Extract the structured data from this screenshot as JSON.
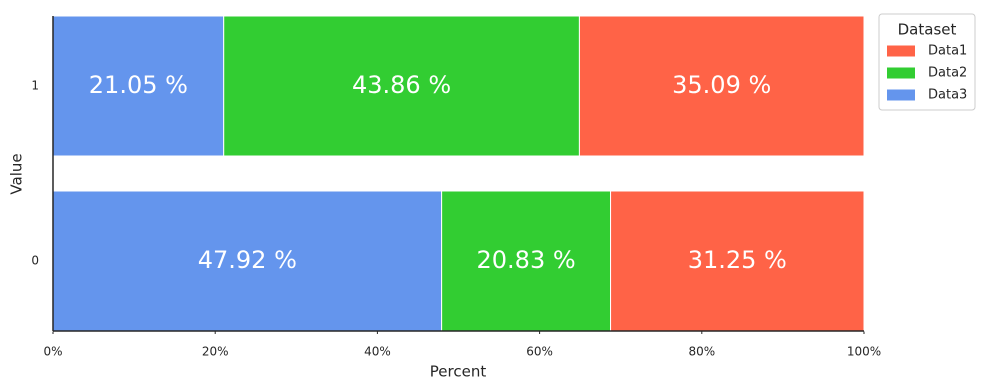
{
  "chart_data": {
    "type": "stacked_barh",
    "x_label": "Percent",
    "y_label": "Value",
    "legend_title": "Dataset",
    "categories": [
      "0",
      "1"
    ],
    "series": [
      {
        "name": "Data1",
        "color": "#ff6347",
        "values": [
          31.25,
          35.09
        ],
        "value_labels": [
          "31.25 %",
          "35.09 %"
        ]
      },
      {
        "name": "Data2",
        "color": "#32cd32",
        "values": [
          20.83,
          43.86
        ],
        "value_labels": [
          "20.83 %",
          "43.86 %"
        ]
      },
      {
        "name": "Data3",
        "color": "#6495ed",
        "values": [
          47.92,
          21.05
        ],
        "value_labels": [
          "47.92 %",
          "21.05 %"
        ]
      }
    ],
    "xlim": [
      0,
      100
    ],
    "xticks": [
      {
        "value": 0,
        "label": "0%"
      },
      {
        "value": 20,
        "label": "20%"
      },
      {
        "value": 40,
        "label": "40%"
      },
      {
        "value": 60,
        "label": "60%"
      },
      {
        "value": 80,
        "label": "80%"
      },
      {
        "value": 100,
        "label": "100%"
      }
    ],
    "grid": false,
    "legend_position": "outside-upper-right"
  }
}
